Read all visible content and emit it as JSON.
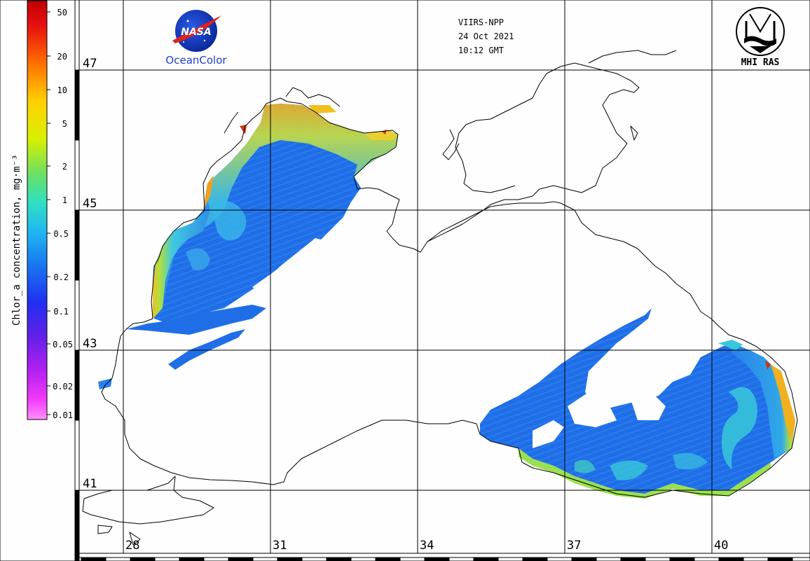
{
  "header": {
    "sensor": "VIIRS-NPP",
    "date": "24 Oct 2021",
    "time": "10:12 GMT"
  },
  "logos": {
    "nasa": "NASA",
    "oceancolor": "OceanColor",
    "mhi": "MHI RAS"
  },
  "colorbar": {
    "title": "Chlor_a concentration, mg·m⁻³",
    "ticks": [
      "50",
      "20",
      "10",
      "5",
      "2",
      "1",
      "0.5",
      "0.2",
      "0.1",
      "0.05",
      "0.02",
      "0.01"
    ],
    "colors": [
      "#d40000",
      "#ff6a00",
      "#ffc000",
      "#e0f000",
      "#80e040",
      "#40d0a0",
      "#20c8f0",
      "#1890f0",
      "#1860e8",
      "#2828f0",
      "#5a28e8",
      "#9a20e8",
      "#d020f0",
      "#ff40f8",
      "#ff88ff"
    ]
  },
  "map": {
    "lat_labels": [
      "47",
      "45",
      "43",
      "41"
    ],
    "lon_labels": [
      "28",
      "31",
      "34",
      "37",
      "40"
    ],
    "colors": {
      "water_low": "#1e6ae6",
      "water_mid": "#2890ee",
      "water_cyan": "#38c8d8",
      "shelf_green": "#8ad860",
      "shelf_yellow": "#e8e040",
      "coast_orange": "#f0a020",
      "hot_red": "#d83010"
    }
  }
}
